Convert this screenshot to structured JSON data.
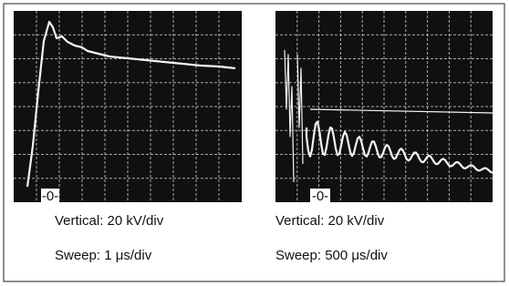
{
  "panels": [
    {
      "zero_label": "-0-",
      "vertical": "Vertical: 20 kV/div",
      "sweep": "Sweep: 1 μs/div"
    },
    {
      "zero_label": "-0-",
      "vertical": "Vertical: 20 kV/div",
      "sweep": "Sweep: 500  μs/div"
    }
  ]
}
